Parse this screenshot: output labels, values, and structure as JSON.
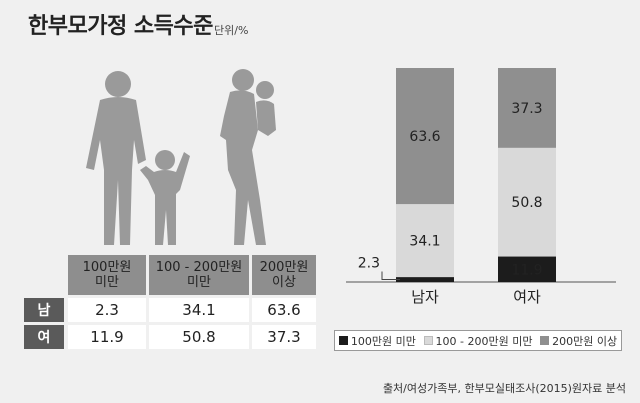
{
  "title": "한부모가정 소득수준",
  "unit": "단위/%",
  "table": {
    "headers": [
      "100만원\n미만",
      "100 - 200만원\n미만",
      "200만원\n이상"
    ],
    "rows": [
      {
        "label": "남",
        "values": [
          "2.3",
          "34.1",
          "63.6"
        ]
      },
      {
        "label": "여",
        "values": [
          "11.9",
          "50.8",
          "37.3"
        ]
      }
    ]
  },
  "chart_data": {
    "type": "bar",
    "stacked": true,
    "categories": [
      "남자",
      "여자"
    ],
    "series": [
      {
        "name": "100만원 미만",
        "values": [
          2.3,
          11.9
        ],
        "color": "#1c1c1c"
      },
      {
        "name": "100 - 200만원 미만",
        "values": [
          34.1,
          50.8
        ],
        "color": "#d9d9d9"
      },
      {
        "name": "200만원 이상",
        "values": [
          63.6,
          37.3
        ],
        "color": "#8f8f8f"
      }
    ],
    "ylim": [
      0,
      100
    ],
    "grid": false,
    "legend_position": "bottom"
  },
  "legend": {
    "items": [
      {
        "label": "100만원 미만",
        "color": "#1c1c1c"
      },
      {
        "label": "100 - 200만원 미만",
        "color": "#d9d9d9"
      },
      {
        "label": "200만원 이상",
        "color": "#8f8f8f"
      }
    ]
  },
  "source": "출처/여성가족부, 한부모실태조사(2015)원자료 분석"
}
